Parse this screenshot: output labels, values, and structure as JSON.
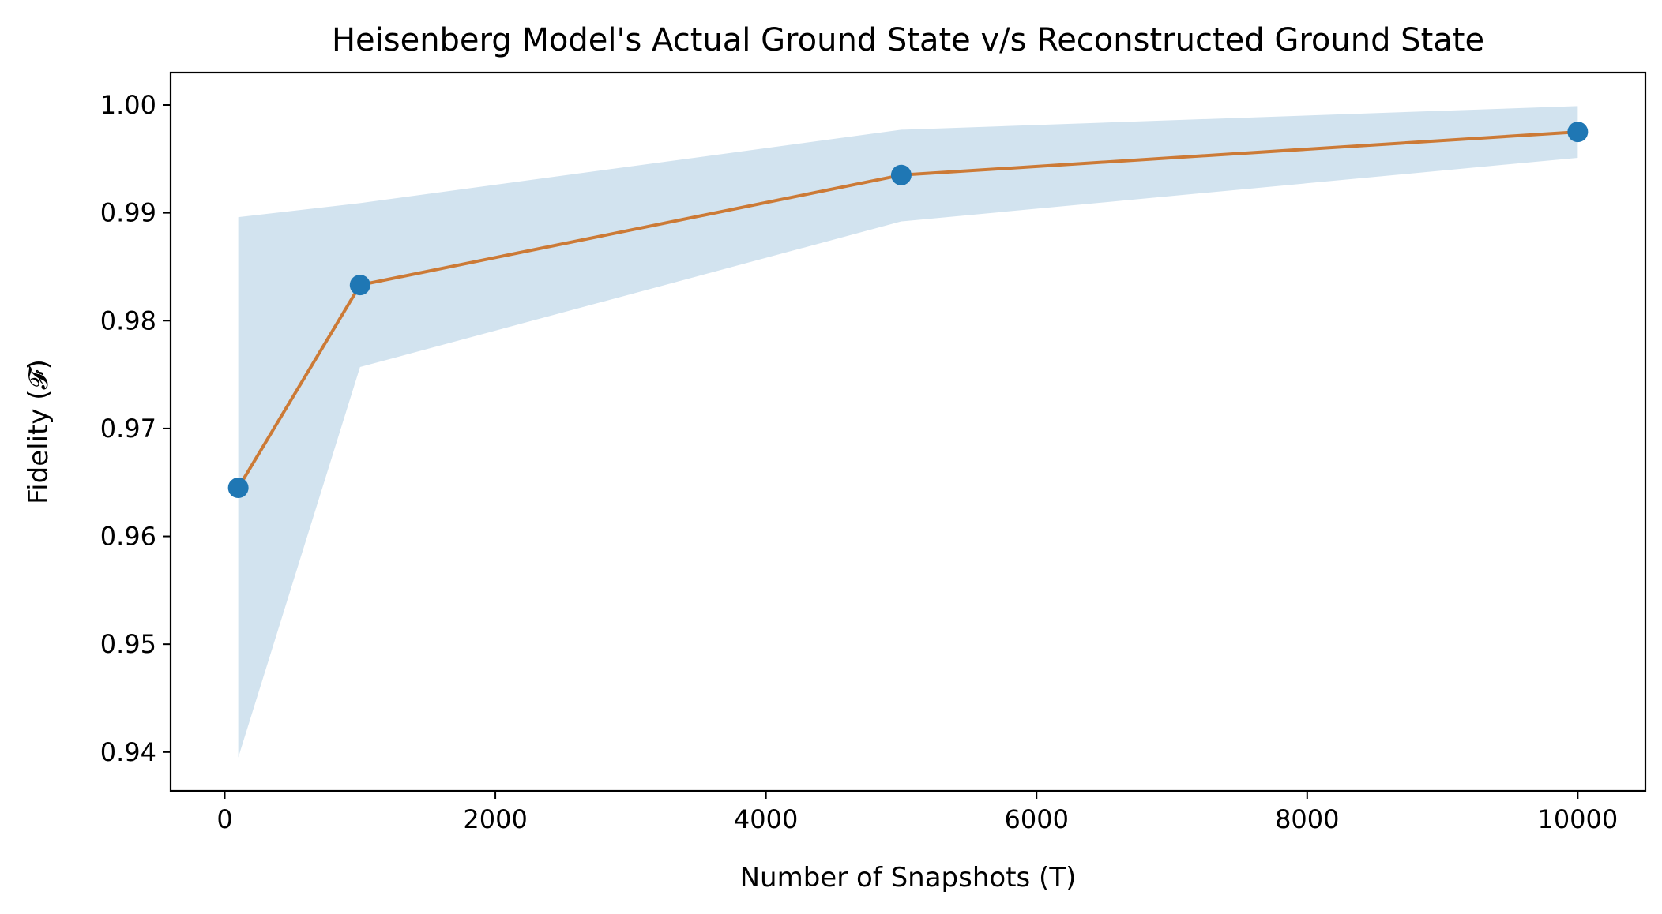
{
  "chart_data": {
    "type": "line",
    "title": "Heisenberg Model's Actual Ground State v/s Reconstructed Ground State",
    "xlabel": "Number of Snapshots (T)",
    "ylabel": "Fidelity (𝓕)",
    "xlim": [
      -400,
      10500
    ],
    "ylim": [
      0.9364,
      1.003
    ],
    "x_ticks": [
      0,
      2000,
      4000,
      6000,
      8000,
      10000
    ],
    "x_tick_labels": [
      "0",
      "2000",
      "4000",
      "6000",
      "8000",
      "10000"
    ],
    "y_ticks": [
      0.94,
      0.95,
      0.96,
      0.97,
      0.98,
      0.99,
      1.0
    ],
    "y_tick_labels": [
      "0.94",
      "0.95",
      "0.96",
      "0.97",
      "0.98",
      "0.99",
      "1.00"
    ],
    "grid": false,
    "series": [
      {
        "x": [
          100,
          1000,
          5000,
          10000
        ],
        "y": [
          0.9645,
          0.9833,
          0.9935,
          0.9975
        ],
        "lower": [
          0.9395,
          0.9757,
          0.9892,
          0.9951
        ],
        "upper": [
          0.9896,
          0.9909,
          0.9977,
          0.9999
        ],
        "line_color": "#cc7a36",
        "marker_color": "#1f77b4",
        "band_color": "#d2e3ef"
      }
    ]
  }
}
